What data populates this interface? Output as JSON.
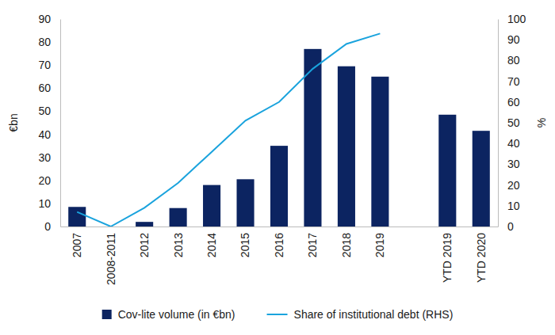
{
  "chart_data": {
    "type": "bar",
    "categories": [
      "2007",
      "2008-2011",
      "2012",
      "2013",
      "2014",
      "2015",
      "2016",
      "2017",
      "2018",
      "2019",
      null,
      "YTD 2019",
      "YTD 2020"
    ],
    "series": [
      {
        "name": "Cov-lite volume (in €bn)",
        "type": "bar",
        "color": "#0c2461",
        "values": [
          8.5,
          0,
          2,
          8,
          18,
          20.5,
          35,
          77,
          69.5,
          65,
          null,
          48.5,
          41.5
        ]
      },
      {
        "name": "Share of institutional debt (RHS)",
        "type": "line",
        "axis": "y2",
        "color": "#1aa3dd",
        "values": [
          7,
          0,
          9,
          21,
          36,
          51,
          60,
          76,
          88,
          93,
          null,
          null,
          null
        ]
      }
    ],
    "ylabel": "€bn",
    "y2label": "%",
    "ylim": [
      0,
      90
    ],
    "yticks": [
      0,
      10,
      20,
      30,
      40,
      50,
      60,
      70,
      80,
      90
    ],
    "y2lim": [
      0,
      100
    ],
    "y2ticks": [
      0,
      10,
      20,
      30,
      40,
      50,
      60,
      70,
      80,
      90,
      100
    ],
    "grid": false,
    "legend": "bottom"
  }
}
